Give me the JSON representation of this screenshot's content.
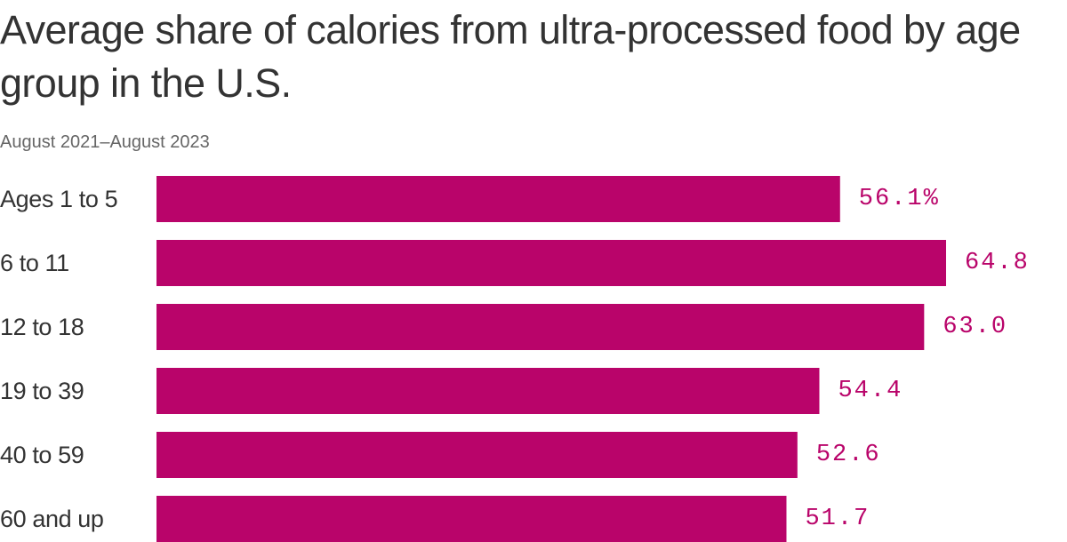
{
  "chart_data": {
    "type": "bar",
    "orientation": "horizontal",
    "title": "Average share of calories from ultra-processed food by age group in the U.S.",
    "subtitle": "August 2021–August 2023",
    "categories": [
      "Ages 1 to 5",
      "6 to 11",
      "12 to 18",
      "19 to 39",
      "40 to 59",
      "60 and up"
    ],
    "values": [
      56.1,
      64.8,
      63.0,
      54.4,
      52.6,
      51.7
    ],
    "value_labels": [
      "56.1%",
      "64.8",
      "63.0",
      "54.4",
      "52.6",
      "51.7"
    ],
    "unit": "%",
    "xlim": [
      0,
      64.8
    ],
    "grid": false,
    "legend": "none",
    "bar_color": "#b9046a",
    "label_color": "#b9046a"
  }
}
